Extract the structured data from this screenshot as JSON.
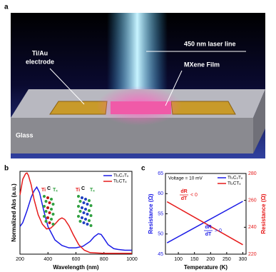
{
  "panel_a": {
    "label": "a",
    "electrode": [
      "Ti/Au",
      "electrode"
    ],
    "laser": "450 nm laser line",
    "film": "MXene Film",
    "glass": "Glass"
  },
  "chart_data": [
    {
      "type": "line",
      "panel_label": "b",
      "xlabel": "Wavelength (nm)",
      "ylabel": "Normalized Abs (a.u.)",
      "xlim": [
        200,
        1000
      ],
      "xticks": [
        200,
        400,
        600,
        800,
        1000
      ],
      "ylim": [
        0,
        1.05
      ],
      "annotations": [
        "Ti",
        "C",
        "Tₓ",
        "Ti",
        "C",
        "Tₓ"
      ],
      "series": [
        {
          "name": "Ti₃C₂Tₓ",
          "color": "#1a1ae6",
          "x": [
            200,
            220,
            250,
            280,
            300,
            320,
            340,
            370,
            400,
            450,
            500,
            550,
            600,
            650,
            700,
            730,
            760,
            780,
            800,
            830,
            870,
            900,
            950,
            1000
          ],
          "values": [
            0.35,
            0.4,
            0.55,
            0.72,
            0.8,
            0.85,
            0.78,
            0.55,
            0.35,
            0.18,
            0.11,
            0.08,
            0.08,
            0.1,
            0.16,
            0.22,
            0.26,
            0.25,
            0.2,
            0.12,
            0.07,
            0.06,
            0.05,
            0.05
          ]
        },
        {
          "name": "Ti₂CTₓ",
          "color": "#e61a1a",
          "x": [
            200,
            220,
            240,
            250,
            260,
            280,
            300,
            330,
            360,
            390,
            420,
            450,
            480,
            500,
            520,
            550,
            580,
            620,
            660,
            700,
            800,
            900,
            1000
          ],
          "values": [
            0.75,
            0.95,
            1.02,
            1.03,
            1.0,
            0.88,
            0.7,
            0.5,
            0.38,
            0.32,
            0.33,
            0.38,
            0.44,
            0.46,
            0.44,
            0.36,
            0.25,
            0.12,
            0.05,
            0.02,
            0.01,
            0.01,
            0.01
          ]
        }
      ]
    },
    {
      "type": "line",
      "panel_label": "c",
      "xlabel": "Temperature (K)",
      "ylabel": "Resistance (Ω)",
      "y2label": "Resistance (Ω)",
      "xlim": [
        60,
        310
      ],
      "xticks": [
        100,
        150,
        200,
        250,
        300
      ],
      "ylim": [
        45,
        65
      ],
      "yticks": [
        45,
        50,
        55,
        60,
        65
      ],
      "y2lim": [
        220,
        280
      ],
      "y2ticks": [
        220,
        240,
        260,
        280
      ],
      "note": "Voltage = 10 mV",
      "fractions": [
        {
          "numerator": "dR",
          "denominator": "dT",
          "relation": "< 0"
        },
        {
          "numerator": "dR",
          "denominator": "dT",
          "relation": "> 0"
        }
      ],
      "series": [
        {
          "name": "Ti₃C₂Tₓ",
          "color": "#1a1ae6",
          "x": [
            65,
            300
          ],
          "values": [
            47.8,
            58.1
          ]
        },
        {
          "name": "Ti₂CTₓ",
          "color": "#e61a1a",
          "axis": "y2",
          "x": [
            65,
            300
          ],
          "values": [
            259,
            227
          ]
        }
      ]
    }
  ]
}
